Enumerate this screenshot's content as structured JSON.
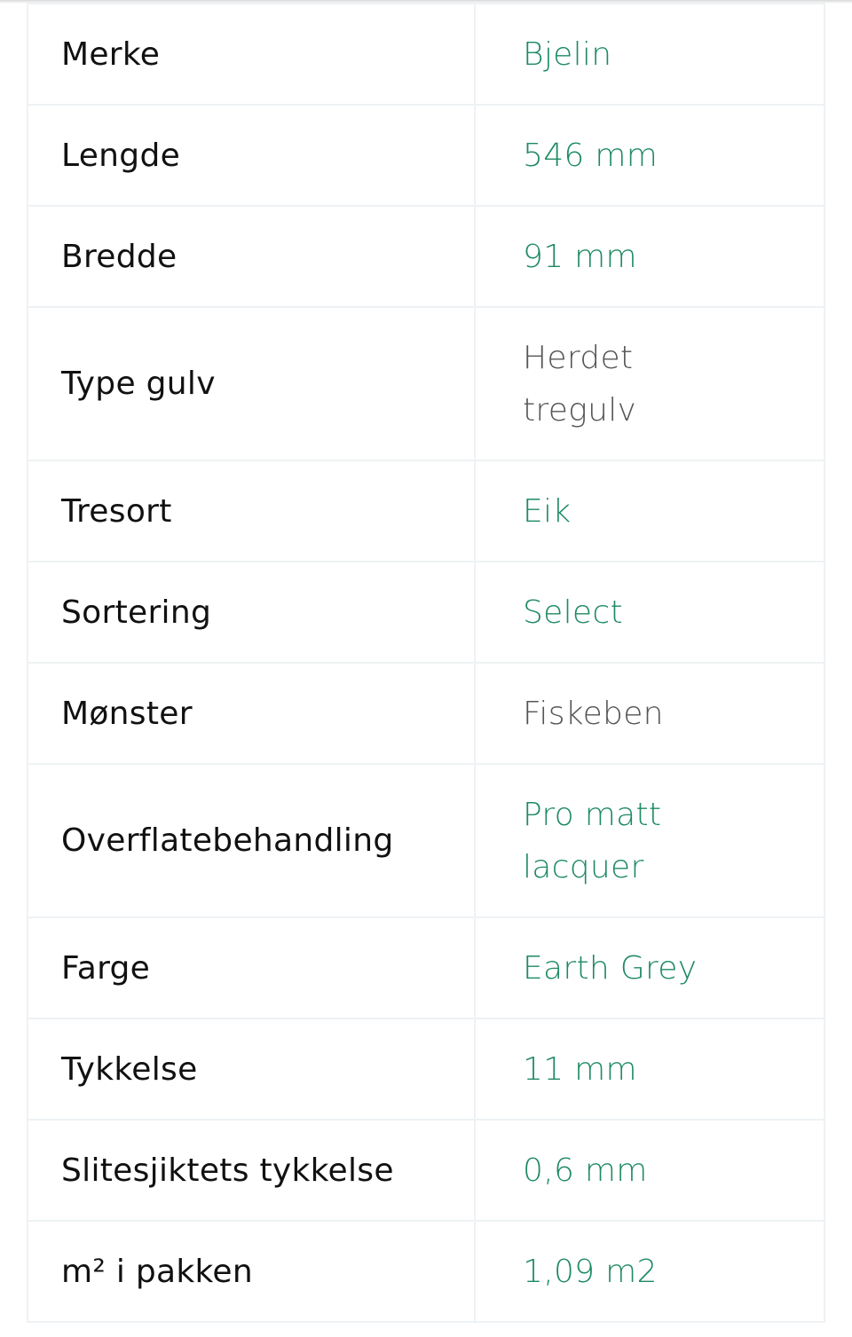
{
  "colors": {
    "link": "#1e8a62",
    "plain": "#555555"
  },
  "specs": [
    {
      "label": "Merke",
      "value": "Bjelin",
      "link": true
    },
    {
      "label": "Lengde",
      "value": "546 mm",
      "link": true
    },
    {
      "label": "Bredde",
      "value": "91 mm",
      "link": true
    },
    {
      "label": "Type gulv",
      "value": "Herdet tregulv",
      "link": false,
      "tall": true
    },
    {
      "label": "Tresort",
      "value": "Eik",
      "link": true
    },
    {
      "label": "Sortering",
      "value": "Select",
      "link": true
    },
    {
      "label": "Mønster",
      "value": "Fiskeben",
      "link": false
    },
    {
      "label": "Overflatebehandling",
      "value": "Pro matt lacquer",
      "link": true,
      "tall": true
    },
    {
      "label": "Farge",
      "value": "Earth Grey",
      "link": true
    },
    {
      "label": "Tykkelse",
      "value": "11 mm",
      "link": true
    },
    {
      "label": "Slitesjiktets tykkelse",
      "value": "0,6 mm",
      "link": true
    },
    {
      "label": "m² i pakken",
      "value": "1,09 m2",
      "link": true
    }
  ]
}
